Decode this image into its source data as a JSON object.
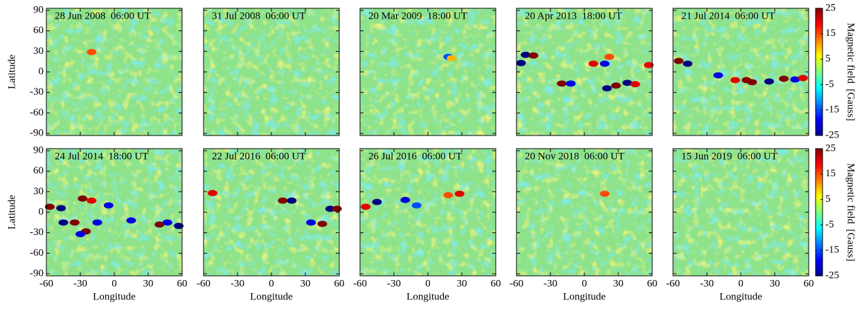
{
  "chart_data": [
    {
      "type": "heatmap",
      "title": "28 Jun 2008  06:00 UT",
      "ylabel": "Latitude",
      "xlim": [
        -60,
        60
      ],
      "ylim": [
        -93,
        93
      ],
      "xticks": [
        -60,
        -30,
        0,
        30,
        60
      ],
      "yticks": [
        -90,
        -60,
        -30,
        0,
        30,
        60,
        90
      ],
      "x": [
        -20
      ],
      "y": [
        29
      ],
      "values": [
        15
      ]
    },
    {
      "type": "heatmap",
      "title": "31 Jul 2008  06:00 UT",
      "xlim": [
        -60,
        60
      ],
      "ylim": [
        -93,
        93
      ],
      "xticks": [
        -60,
        -30,
        0,
        30,
        60
      ],
      "yticks": [
        -90,
        -60,
        -30,
        0,
        30,
        60,
        90
      ],
      "x": [],
      "y": [],
      "values": []
    },
    {
      "type": "heatmap",
      "title": "20 Mar 2009  18:00 UT",
      "xlim": [
        -60,
        60
      ],
      "ylim": [
        -93,
        93
      ],
      "xticks": [
        -60,
        -30,
        0,
        30,
        60
      ],
      "yticks": [
        -90,
        -60,
        -30,
        0,
        30,
        60,
        90
      ],
      "x": [
        18,
        21
      ],
      "y": [
        22,
        20
      ],
      "values": [
        -15,
        10
      ]
    },
    {
      "type": "heatmap",
      "title": "20 Apr 2013  18:00 UT",
      "xlim": [
        -60,
        60
      ],
      "ylim": [
        -93,
        93
      ],
      "xticks": [
        -60,
        -30,
        0,
        30,
        60
      ],
      "yticks": [
        -90,
        -60,
        -30,
        0,
        30,
        60,
        90
      ],
      "x": [
        -52,
        -45,
        -56,
        8,
        18,
        22,
        -20,
        -12,
        20,
        28,
        38,
        45,
        57
      ],
      "y": [
        25,
        24,
        13,
        12,
        12,
        22,
        -17,
        -17,
        -24,
        -20,
        -16,
        -18,
        10
      ],
      "values": [
        -25,
        25,
        -25,
        20,
        -20,
        15,
        25,
        -20,
        -25,
        25,
        -25,
        20,
        20
      ]
    },
    {
      "type": "heatmap",
      "title": "21 Jul 2014  06:00 UT",
      "xlim": [
        -60,
        60
      ],
      "ylim": [
        -93,
        93
      ],
      "xticks": [
        -60,
        -30,
        0,
        30,
        60
      ],
      "yticks": [
        -90,
        -60,
        -30,
        0,
        30,
        60,
        90
      ],
      "x": [
        -55,
        -47,
        -20,
        -5,
        5,
        10,
        25,
        38,
        48,
        55
      ],
      "y": [
        16,
        12,
        -5,
        -12,
        -12,
        -15,
        -14,
        -10,
        -11,
        -9
      ],
      "values": [
        25,
        -25,
        -20,
        20,
        25,
        25,
        -25,
        25,
        -20,
        20
      ],
      "colorbar": {
        "label": "Magnetic field  [Gauss]",
        "lim": [
          -25,
          25
        ],
        "ticks": [
          -25,
          -15,
          -5,
          5,
          15,
          25
        ]
      }
    },
    {
      "type": "heatmap",
      "title": "24 Jul 2014  18:00 UT",
      "ylabel": "Latitude",
      "xlabel": "Longitude",
      "xlim": [
        -60,
        60
      ],
      "ylim": [
        -93,
        93
      ],
      "xticks": [
        -60,
        -30,
        0,
        30,
        60
      ],
      "yticks": [
        -90,
        -60,
        -30,
        0,
        30,
        60,
        90
      ],
      "x": [
        -57,
        -47,
        -28,
        -20,
        -5,
        -45,
        -35,
        -25,
        -15,
        -30,
        15,
        40,
        47,
        57
      ],
      "y": [
        8,
        6,
        20,
        17,
        10,
        -15,
        -15,
        -28,
        -15,
        -32,
        -12,
        -18,
        -15,
        -20
      ],
      "values": [
        25,
        -25,
        25,
        20,
        -20,
        -25,
        25,
        25,
        -20,
        -20,
        -20,
        25,
        -20,
        -25
      ]
    },
    {
      "type": "heatmap",
      "title": "22 Jul 2016  06:00 UT",
      "xlabel": "Longitude",
      "xlim": [
        -60,
        60
      ],
      "ylim": [
        -93,
        93
      ],
      "xticks": [
        -60,
        -30,
        0,
        30,
        60
      ],
      "yticks": [
        -90,
        -60,
        -30,
        0,
        30,
        60,
        90
      ],
      "x": [
        -52,
        10,
        18,
        35,
        45,
        52,
        58
      ],
      "y": [
        28,
        17,
        17,
        -15,
        -17,
        5,
        5
      ],
      "values": [
        20,
        25,
        -25,
        -20,
        25,
        -25,
        25
      ]
    },
    {
      "type": "heatmap",
      "title": "26 Jul 2016  06:00 UT",
      "xlabel": "Longitude",
      "xlim": [
        -60,
        60
      ],
      "ylim": [
        -93,
        93
      ],
      "xticks": [
        -60,
        -30,
        0,
        30,
        60
      ],
      "yticks": [
        -90,
        -60,
        -30,
        0,
        30,
        60,
        90
      ],
      "x": [
        -45,
        -55,
        -20,
        -10,
        18,
        28
      ],
      "y": [
        15,
        8,
        18,
        10,
        25,
        27
      ],
      "values": [
        -25,
        20,
        -20,
        -15,
        15,
        20
      ]
    },
    {
      "type": "heatmap",
      "title": "20 Nov 2018  06:00 UT",
      "xlabel": "Longitude",
      "xlim": [
        -60,
        60
      ],
      "ylim": [
        -93,
        93
      ],
      "xticks": [
        -60,
        -30,
        0,
        30,
        60
      ],
      "yticks": [
        -90,
        -60,
        -30,
        0,
        30,
        60,
        90
      ],
      "x": [
        18
      ],
      "y": [
        27
      ],
      "values": [
        15
      ]
    },
    {
      "type": "heatmap",
      "title": "15 Jun 2019  06:00 UT",
      "xlabel": "Longitude",
      "xlim": [
        -60,
        60
      ],
      "ylim": [
        -93,
        93
      ],
      "xticks": [
        -60,
        -30,
        0,
        30,
        60
      ],
      "yticks": [
        -90,
        -60,
        -30,
        0,
        30,
        60,
        90
      ],
      "x": [],
      "y": [],
      "values": [],
      "colorbar": {
        "label": "Magnetic field  [Gauss]",
        "lim": [
          -25,
          25
        ],
        "ticks": [
          -25,
          -15,
          -5,
          5,
          15,
          25
        ]
      }
    }
  ]
}
